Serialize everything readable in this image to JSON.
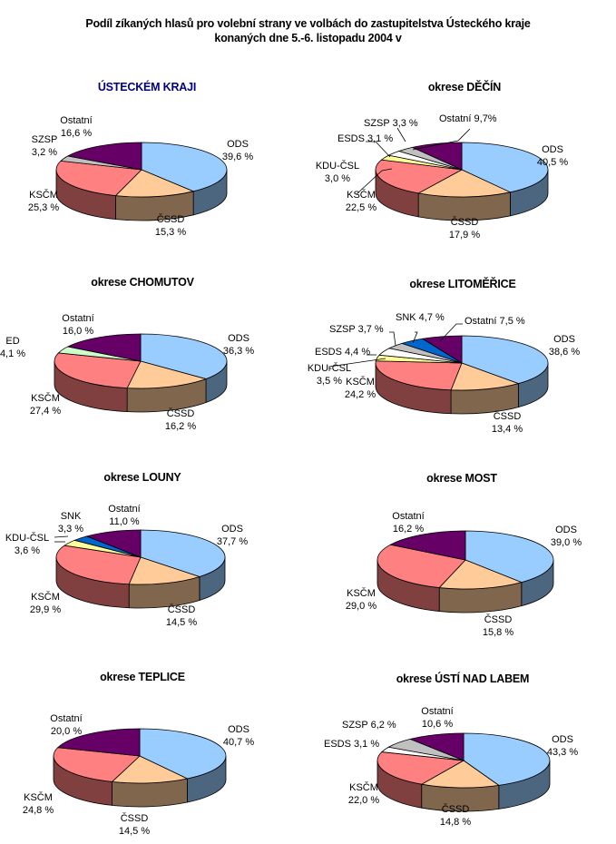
{
  "title_line1": "Podíl zíkaných hlasů pro volební strany  ve volbách do zastupitelstva Ústeckého kraje",
  "title_line2": "konaných dne 5.-6. listopadu 2004 v",
  "colors": {
    "ODS": "#99CCFF",
    "ČSSD": "#FFCC99",
    "KSČM": "#FF8080",
    "KDU-ČSL": "#FFFF99",
    "ESDS": "#FFFFFF",
    "SZSP": "#C0C0C0",
    "SNK": "#0066CC",
    "ED": "#CCFFCC",
    "Ostatní": "#660066"
  },
  "chart_data": [
    {
      "type": "pie",
      "title": "ÚSTECKÉM KRAJI",
      "slices": [
        {
          "name": "ODS",
          "value": 39.6,
          "label": [
            "ODS",
            "39,6 %"
          ]
        },
        {
          "name": "ČSSD",
          "value": 15.3,
          "label": [
            "ČSSD",
            "15,3 %"
          ]
        },
        {
          "name": "KSČM",
          "value": 25.3,
          "label": [
            "KSČM",
            "25,3 %"
          ]
        },
        {
          "name": "SZSP",
          "value": 3.2,
          "label": [
            "SZSP",
            "3,2 %"
          ]
        },
        {
          "name": "Ostatní",
          "value": 16.6,
          "label": [
            "Ostatní",
            "16,6 %"
          ]
        }
      ]
    },
    {
      "type": "pie",
      "title": "okrese DĚČÍN",
      "slices": [
        {
          "name": "ODS",
          "value": 40.5,
          "label": [
            "ODS",
            "40,5 %"
          ]
        },
        {
          "name": "ČSSD",
          "value": 17.9,
          "label": [
            "ČSSD",
            "17,9 %"
          ]
        },
        {
          "name": "KSČM",
          "value": 22.5,
          "label": [
            "KSČM",
            "22,5 %"
          ]
        },
        {
          "name": "KDU-ČSL",
          "value": 3.0,
          "label": [
            "KDU-ČSL",
            "3,0 %"
          ]
        },
        {
          "name": "ESDS",
          "value": 3.1,
          "label": [
            "ESDS 3,1 %"
          ]
        },
        {
          "name": "SZSP",
          "value": 3.3,
          "label": [
            "SZSP 3,3 %"
          ]
        },
        {
          "name": "Ostatní",
          "value": 9.7,
          "label": [
            "Ostatní 9,7%"
          ]
        }
      ]
    },
    {
      "type": "pie",
      "title": "okrese CHOMUTOV",
      "slices": [
        {
          "name": "ODS",
          "value": 36.3,
          "label": [
            "ODS",
            "36,3 %"
          ]
        },
        {
          "name": "ČSSD",
          "value": 16.2,
          "label": [
            "ČSSD",
            "16,2 %"
          ]
        },
        {
          "name": "KSČM",
          "value": 27.4,
          "label": [
            "KSČM",
            "27,4 %"
          ]
        },
        {
          "name": "ED",
          "value": 4.1,
          "label": [
            "ED",
            "4,1 %"
          ]
        },
        {
          "name": "Ostatní",
          "value": 16.0,
          "label": [
            "Ostatní",
            "16,0 %"
          ]
        }
      ]
    },
    {
      "type": "pie",
      "title": "okrese LITOMĚŘICE",
      "slices": [
        {
          "name": "ODS",
          "value": 38.6,
          "label": [
            "ODS",
            "38,6 %"
          ]
        },
        {
          "name": "ČSSD",
          "value": 13.4,
          "label": [
            "ČSSD",
            "13,4 %"
          ]
        },
        {
          "name": "KSČM",
          "value": 24.2,
          "label": [
            "KSČM",
            "24,2 %"
          ]
        },
        {
          "name": "KDU-ČSL",
          "value": 3.5,
          "label": [
            "KDU-ČSL",
            "3,5 %"
          ]
        },
        {
          "name": "ESDS",
          "value": 4.4,
          "label": [
            "ESDS 4,4 %"
          ]
        },
        {
          "name": "SZSP",
          "value": 3.7,
          "label": [
            "SZSP 3,7 %"
          ]
        },
        {
          "name": "SNK",
          "value": 4.7,
          "label": [
            "SNK 4,7 %"
          ]
        },
        {
          "name": "Ostatní",
          "value": 7.5,
          "label": [
            "Ostatní 7,5 %"
          ]
        }
      ]
    },
    {
      "type": "pie",
      "title": "okrese LOUNY",
      "slices": [
        {
          "name": "ODS",
          "value": 37.7,
          "label": [
            "ODS",
            "37,7 %"
          ]
        },
        {
          "name": "ČSSD",
          "value": 14.5,
          "label": [
            "ČSSD",
            "14,5 %"
          ]
        },
        {
          "name": "KSČM",
          "value": 29.9,
          "label": [
            "KSČM",
            "29,9 %"
          ]
        },
        {
          "name": "KDU-ČSL",
          "value": 3.6,
          "label": [
            "KDU-ČSL",
            "3,6 %"
          ]
        },
        {
          "name": "SNK",
          "value": 3.3,
          "label": [
            "SNK",
            "3,3 %"
          ]
        },
        {
          "name": "Ostatní",
          "value": 11.0,
          "label": [
            "Ostatní",
            "11,0 %"
          ]
        }
      ]
    },
    {
      "type": "pie",
      "title": "okrese MOST",
      "slices": [
        {
          "name": "ODS",
          "value": 39.0,
          "label": [
            "ODS",
            "39,0 %"
          ]
        },
        {
          "name": "ČSSD",
          "value": 15.8,
          "label": [
            "ČSSD",
            "15,8 %"
          ]
        },
        {
          "name": "KSČM",
          "value": 29.0,
          "label": [
            "KSČM",
            "29,0 %"
          ]
        },
        {
          "name": "Ostatní",
          "value": 16.2,
          "label": [
            "Ostatní",
            "16,2 %"
          ]
        }
      ]
    },
    {
      "type": "pie",
      "title": "okrese TEPLICE",
      "slices": [
        {
          "name": "ODS",
          "value": 40.7,
          "label": [
            "ODS",
            "40,7 %"
          ]
        },
        {
          "name": "ČSSD",
          "value": 14.5,
          "label": [
            "ČSSD",
            "14,5 %"
          ]
        },
        {
          "name": "KSČM",
          "value": 24.8,
          "label": [
            "KSČM",
            "24,8 %"
          ]
        },
        {
          "name": "Ostatní",
          "value": 20.0,
          "label": [
            "Ostatní",
            "20,0 %"
          ]
        }
      ]
    },
    {
      "type": "pie",
      "title": "okrese ÚSTÍ NAD LABEM",
      "slices": [
        {
          "name": "ODS",
          "value": 43.3,
          "label": [
            "ODS",
            "43,3 %"
          ]
        },
        {
          "name": "ČSSD",
          "value": 14.8,
          "label": [
            "ČSSD",
            "14,8 %"
          ]
        },
        {
          "name": "KSČM",
          "value": 22.0,
          "label": [
            "KSČM",
            "22,0 %"
          ]
        },
        {
          "name": "ESDS",
          "value": 3.1,
          "label": [
            "ESDS 3,1 %"
          ]
        },
        {
          "name": "SZSP",
          "value": 6.2,
          "label": [
            "SZSP 6,2 %"
          ]
        },
        {
          "name": "Ostatní",
          "value": 10.6,
          "label": [
            "Ostatní",
            "10,6 %"
          ]
        }
      ]
    }
  ]
}
